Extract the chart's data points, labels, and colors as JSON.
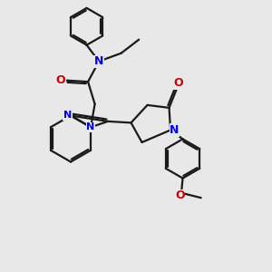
{
  "bg_color": "#e8e8e8",
  "bond_color": "#1a1a1a",
  "n_color": "#0000ee",
  "o_color": "#cc0000",
  "lw": 1.6,
  "figsize": [
    3.0,
    3.0
  ],
  "dpi": 100,
  "xlim": [
    0,
    10
  ],
  "ylim": [
    0,
    10
  ]
}
